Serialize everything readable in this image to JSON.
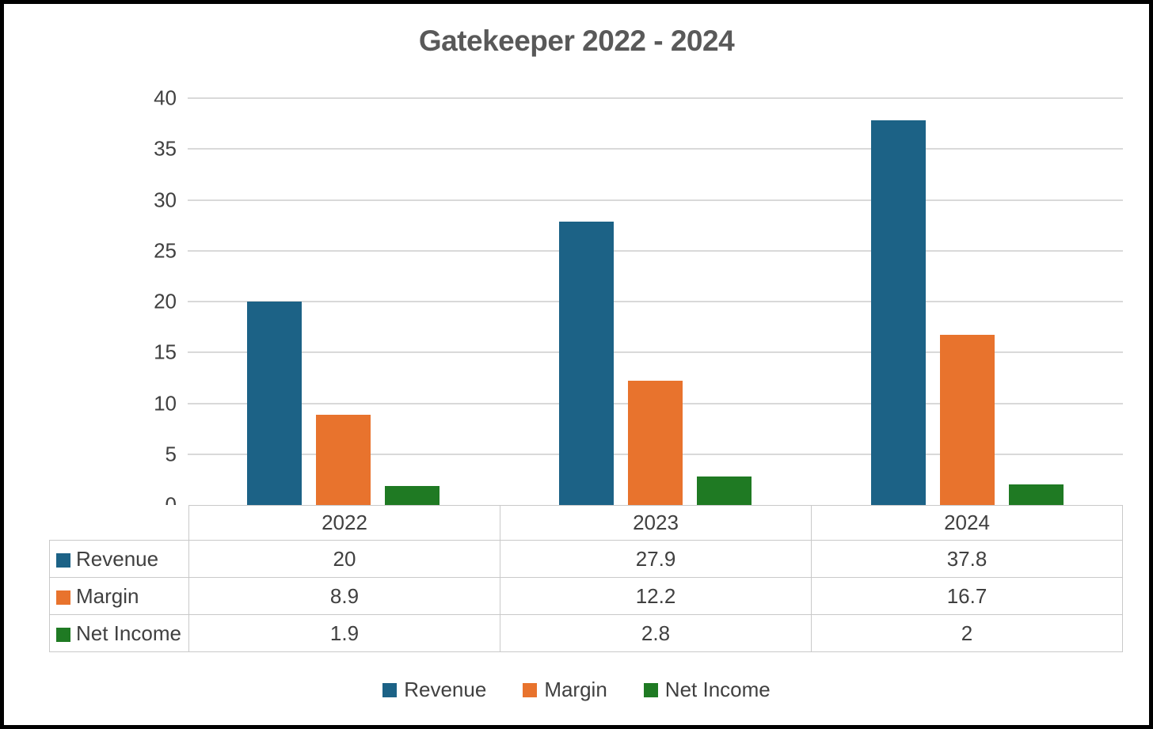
{
  "title": "Gatekeeper 2022 - 2024",
  "chart_data": {
    "type": "bar",
    "title": "Gatekeeper 2022 - 2024",
    "categories": [
      "2022",
      "2023",
      "2024"
    ],
    "series": [
      {
        "name": "Revenue",
        "color": "#1c6286",
        "values": [
          20,
          27.9,
          37.8
        ]
      },
      {
        "name": "Margin",
        "color": "#e8732d",
        "values": [
          8.9,
          12.2,
          16.7
        ]
      },
      {
        "name": "Net Income",
        "color": "#1f7a23",
        "values": [
          1.9,
          2.8,
          2
        ]
      }
    ],
    "ylim": [
      0,
      40
    ],
    "yticks": [
      0,
      5,
      10,
      15,
      20,
      25,
      30,
      35,
      40
    ],
    "grid": true,
    "legend_position": "bottom",
    "show_data_table": true
  },
  "colors": {
    "revenue": "#1c6286",
    "margin": "#e8732d",
    "net_income": "#1f7a23",
    "title_text": "#595959",
    "axis_text": "#404040",
    "gridline": "#d9d9d9",
    "table_border": "#c9c9c9",
    "frame_border": "#000000",
    "background": "#ffffff"
  }
}
